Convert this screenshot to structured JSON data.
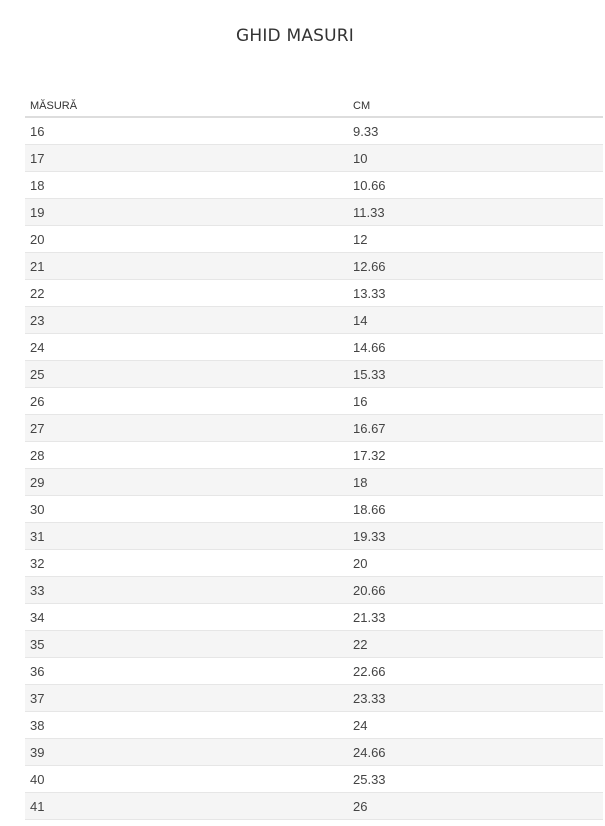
{
  "title": "GHID MASURI",
  "table": {
    "headers": [
      "MĂSURĂ",
      "CM"
    ],
    "rows": [
      [
        "16",
        "9.33"
      ],
      [
        "17",
        "10"
      ],
      [
        "18",
        "10.66"
      ],
      [
        "19",
        "11.33"
      ],
      [
        "20",
        "12"
      ],
      [
        "21",
        "12.66"
      ],
      [
        "22",
        "13.33"
      ],
      [
        "23",
        "14"
      ],
      [
        "24",
        "14.66"
      ],
      [
        "25",
        "15.33"
      ],
      [
        "26",
        "16"
      ],
      [
        "27",
        "16.67"
      ],
      [
        "28",
        "17.32"
      ],
      [
        "29",
        "18"
      ],
      [
        "30",
        "18.66"
      ],
      [
        "31",
        "19.33"
      ],
      [
        "32",
        "20"
      ],
      [
        "33",
        "20.66"
      ],
      [
        "34",
        "21.33"
      ],
      [
        "35",
        "22"
      ],
      [
        "36",
        "22.66"
      ],
      [
        "37",
        "23.33"
      ],
      [
        "38",
        "24"
      ],
      [
        "39",
        "24.66"
      ],
      [
        "40",
        "25.33"
      ],
      [
        "41",
        "26"
      ]
    ]
  }
}
